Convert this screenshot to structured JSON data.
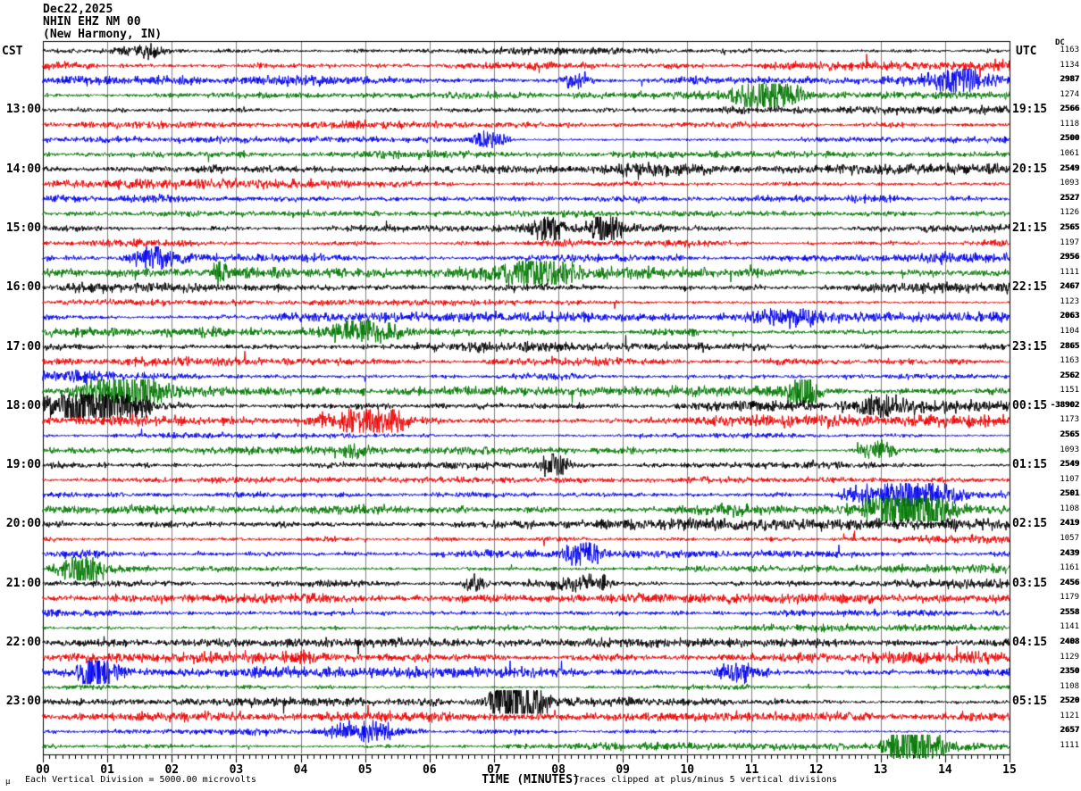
{
  "header": {
    "date": "Dec22,2025",
    "station": "NHIN EHZ NM 00",
    "location": "(New Harmony, IN)"
  },
  "axis": {
    "left_timezone": "CST",
    "right_timezone": "UTC",
    "dc_header": "DC",
    "x_title": "TIME (MINUTES)",
    "x_tick_labels": [
      "00",
      "01",
      "02",
      "03",
      "04",
      "05",
      "06",
      "07",
      "08",
      "09",
      "10",
      "11",
      "12",
      "13",
      "14",
      "15"
    ]
  },
  "footer": {
    "mu_glyph": "μ",
    "scale_note": "Each Vertical Division = 5000.00 microvolts",
    "clip_note": "Traces clipped at plus/minus 5 vertical divisions"
  },
  "colors": {
    "black": "#000000",
    "red": "#ee0000",
    "blue": "#0000ee",
    "green": "#007700",
    "grid": "#808080",
    "frame": "#000000"
  },
  "chart_data": {
    "type": "line",
    "subtype": "helicorder-seismogram",
    "title": "NHIN EHZ NM 00 (New Harmony, IN) Dec22,2025",
    "xlabel": "TIME (MINUTES)",
    "x_range_minutes": [
      0,
      15
    ],
    "major_tick_minutes": 1,
    "minor_tick_minutes": 0.1,
    "minutes_per_row": 15,
    "rows_total": 48,
    "color_cycle": [
      "black",
      "red",
      "blue",
      "green"
    ],
    "microvolts_per_division": "5000.00",
    "clip_divisions": 5,
    "grid": true,
    "legend": "none",
    "rows": [
      {
        "cst": "",
        "utc": "",
        "dc": "1163",
        "color": "black",
        "bold": false
      },
      {
        "cst": "",
        "utc": "",
        "dc": "1134",
        "color": "red",
        "bold": false
      },
      {
        "cst": "",
        "utc": "",
        "dc": "2987",
        "color": "blue",
        "bold": true
      },
      {
        "cst": "",
        "utc": "",
        "dc": "1274",
        "color": "green",
        "bold": false
      },
      {
        "cst": "13:00",
        "utc": "19:15",
        "dc": "2566",
        "color": "black",
        "bold": true
      },
      {
        "cst": "",
        "utc": "",
        "dc": "1118",
        "color": "red",
        "bold": false
      },
      {
        "cst": "",
        "utc": "",
        "dc": "2500",
        "color": "blue",
        "bold": true
      },
      {
        "cst": "",
        "utc": "",
        "dc": "1061",
        "color": "green",
        "bold": false
      },
      {
        "cst": "14:00",
        "utc": "20:15",
        "dc": "2549",
        "color": "black",
        "bold": true
      },
      {
        "cst": "",
        "utc": "",
        "dc": "1093",
        "color": "red",
        "bold": false
      },
      {
        "cst": "",
        "utc": "",
        "dc": "2527",
        "color": "blue",
        "bold": true
      },
      {
        "cst": "",
        "utc": "",
        "dc": "1126",
        "color": "green",
        "bold": false
      },
      {
        "cst": "15:00",
        "utc": "21:15",
        "dc": "2565",
        "color": "black",
        "bold": true
      },
      {
        "cst": "",
        "utc": "",
        "dc": "1197",
        "color": "red",
        "bold": false
      },
      {
        "cst": "",
        "utc": "",
        "dc": "2956",
        "color": "blue",
        "bold": true
      },
      {
        "cst": "",
        "utc": "",
        "dc": "1111",
        "color": "green",
        "bold": false
      },
      {
        "cst": "16:00",
        "utc": "22:15",
        "dc": "2467",
        "color": "black",
        "bold": true
      },
      {
        "cst": "",
        "utc": "",
        "dc": "1123",
        "color": "red",
        "bold": false
      },
      {
        "cst": "",
        "utc": "",
        "dc": "2063",
        "color": "blue",
        "bold": true
      },
      {
        "cst": "",
        "utc": "",
        "dc": "1104",
        "color": "green",
        "bold": false
      },
      {
        "cst": "17:00",
        "utc": "23:15",
        "dc": "2865",
        "color": "black",
        "bold": true
      },
      {
        "cst": "",
        "utc": "",
        "dc": "1163",
        "color": "red",
        "bold": false
      },
      {
        "cst": "",
        "utc": "",
        "dc": "2562",
        "color": "blue",
        "bold": true
      },
      {
        "cst": "",
        "utc": "",
        "dc": "1151",
        "color": "green",
        "bold": false
      },
      {
        "cst": "18:00",
        "utc": "00:15",
        "dc": "-38902",
        "color": "black",
        "bold": true
      },
      {
        "cst": "",
        "utc": "",
        "dc": "1173",
        "color": "red",
        "bold": false
      },
      {
        "cst": "",
        "utc": "",
        "dc": "2565",
        "color": "blue",
        "bold": true
      },
      {
        "cst": "",
        "utc": "",
        "dc": "1093",
        "color": "green",
        "bold": false
      },
      {
        "cst": "19:00",
        "utc": "01:15",
        "dc": "2549",
        "color": "black",
        "bold": true
      },
      {
        "cst": "",
        "utc": "",
        "dc": "1107",
        "color": "red",
        "bold": false
      },
      {
        "cst": "",
        "utc": "",
        "dc": "2501",
        "color": "blue",
        "bold": true
      },
      {
        "cst": "",
        "utc": "",
        "dc": "1108",
        "color": "green",
        "bold": false
      },
      {
        "cst": "20:00",
        "utc": "02:15",
        "dc": "2419",
        "color": "black",
        "bold": true
      },
      {
        "cst": "",
        "utc": "",
        "dc": "1057",
        "color": "red",
        "bold": false
      },
      {
        "cst": "",
        "utc": "",
        "dc": "2439",
        "color": "blue",
        "bold": true
      },
      {
        "cst": "",
        "utc": "",
        "dc": "1161",
        "color": "green",
        "bold": false
      },
      {
        "cst": "21:00",
        "utc": "03:15",
        "dc": "2456",
        "color": "black",
        "bold": true
      },
      {
        "cst": "",
        "utc": "",
        "dc": "1179",
        "color": "red",
        "bold": false
      },
      {
        "cst": "",
        "utc": "",
        "dc": "2558",
        "color": "blue",
        "bold": true
      },
      {
        "cst": "",
        "utc": "",
        "dc": "1141",
        "color": "green",
        "bold": false
      },
      {
        "cst": "22:00",
        "utc": "04:15",
        "dc": "2408",
        "color": "black",
        "bold": true
      },
      {
        "cst": "",
        "utc": "",
        "dc": "1129",
        "color": "red",
        "bold": false
      },
      {
        "cst": "",
        "utc": "",
        "dc": "2350",
        "color": "blue",
        "bold": true
      },
      {
        "cst": "",
        "utc": "",
        "dc": "1108",
        "color": "green",
        "bold": false
      },
      {
        "cst": "23:00",
        "utc": "05:15",
        "dc": "2520",
        "color": "black",
        "bold": true
      },
      {
        "cst": "",
        "utc": "",
        "dc": "1121",
        "color": "red",
        "bold": false
      },
      {
        "cst": "",
        "utc": "",
        "dc": "2657",
        "color": "blue",
        "bold": true
      },
      {
        "cst": "",
        "utc": "",
        "dc": "1111",
        "color": "green",
        "bold": false
      }
    ]
  }
}
